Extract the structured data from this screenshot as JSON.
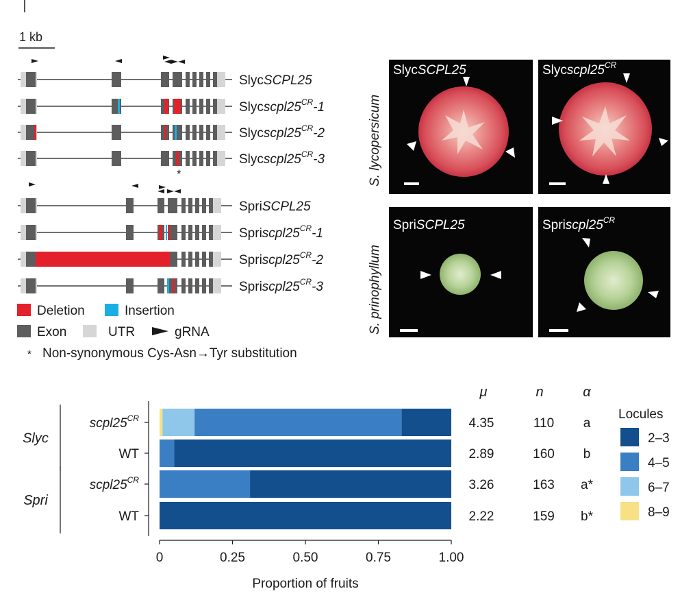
{
  "scale_bar_label": "1 kb",
  "genes": [
    {
      "prefix": "Slyc",
      "name": "SCPL25",
      "sup": "",
      "suffix": ""
    },
    {
      "prefix": "Slyc",
      "name": "scpl25",
      "sup": "CR",
      "suffix": "-1"
    },
    {
      "prefix": "Slyc",
      "name": "scpl25",
      "sup": "CR",
      "suffix": "-2"
    },
    {
      "prefix": "Slyc",
      "name": "scpl25",
      "sup": "CR",
      "suffix": "-3"
    },
    {
      "prefix": "Spri",
      "name": "SCPL25",
      "sup": "",
      "suffix": ""
    },
    {
      "prefix": "Spri",
      "name": "scpl25",
      "sup": "CR",
      "suffix": "-1"
    },
    {
      "prefix": "Spri",
      "name": "scpl25",
      "sup": "CR",
      "suffix": "-2"
    },
    {
      "prefix": "Spri",
      "name": "scpl25",
      "sup": "CR",
      "suffix": "-3"
    }
  ],
  "asterisk": "*",
  "legend_top": {
    "deletion": "Deletion",
    "insertion": "Insertion",
    "exon": "Exon",
    "utr": "UTR",
    "grna": "gRNA",
    "footnote": "Non-synonymous Cys-Asn→Tyr substitution",
    "footnote_mark": "*"
  },
  "photos": {
    "species_top": "S. lycopersicum",
    "species_bottom": "S. prinophyllum",
    "labels": [
      {
        "prefix": "Slyc",
        "name": "SCPL25",
        "sup": ""
      },
      {
        "prefix": "Slyc",
        "name": "scpl25",
        "sup": "CR"
      },
      {
        "prefix": "Spri",
        "name": "SCPL25",
        "sup": ""
      },
      {
        "prefix": "Spri",
        "name": "scpl25",
        "sup": "CR"
      }
    ]
  },
  "colors": {
    "deletion": "#e3212b",
    "insertion": "#1aaee5",
    "exon": "#5d5d5d",
    "utr": "#d6d6d6",
    "locule_2_3": "#134f8c",
    "locule_4_5": "#3a7fc4",
    "locule_6_7": "#8fc7ea",
    "locule_8_9": "#f7e184"
  },
  "chart_data": {
    "type": "bar",
    "orientation": "horizontal",
    "stacked": true,
    "xlabel": "Proportion of fruits",
    "xlim": [
      0,
      1
    ],
    "xticks": [
      "0",
      "0.25",
      "0.50",
      "0.75",
      "1.00"
    ],
    "groups": [
      {
        "label": "Slyc",
        "rows": [
          0,
          1
        ]
      },
      {
        "label": "Spri",
        "rows": [
          2,
          3
        ]
      }
    ],
    "categories": [
      "scpl25CR",
      "WT",
      "scpl25CR",
      "WT"
    ],
    "category_display": [
      {
        "name": "scpl25",
        "sup": "CR"
      },
      {
        "name": "WT",
        "sup": ""
      },
      {
        "name": "scpl25",
        "sup": "CR"
      },
      {
        "name": "WT",
        "sup": ""
      }
    ],
    "legend_title": "Locules",
    "series": [
      {
        "name": "8–9",
        "values": [
          0.01,
          0,
          0,
          0
        ]
      },
      {
        "name": "6–7",
        "values": [
          0.11,
          0,
          0,
          0
        ]
      },
      {
        "name": "4–5",
        "values": [
          0.71,
          0.05,
          0.31,
          0
        ]
      },
      {
        "name": "2–3",
        "values": [
          0.17,
          0.95,
          0.69,
          1.0
        ]
      }
    ],
    "legend_order": [
      "2–3",
      "4–5",
      "6–7",
      "8–9"
    ],
    "stats_headers": {
      "mu": "μ",
      "n": "n",
      "alpha": "α"
    },
    "stats": [
      {
        "mu": "4.35",
        "n": "110",
        "alpha": "a"
      },
      {
        "mu": "2.89",
        "n": "160",
        "alpha": "b"
      },
      {
        "mu": "3.26",
        "n": "163",
        "alpha": "a*"
      },
      {
        "mu": "2.22",
        "n": "159",
        "alpha": "b*"
      }
    ]
  }
}
